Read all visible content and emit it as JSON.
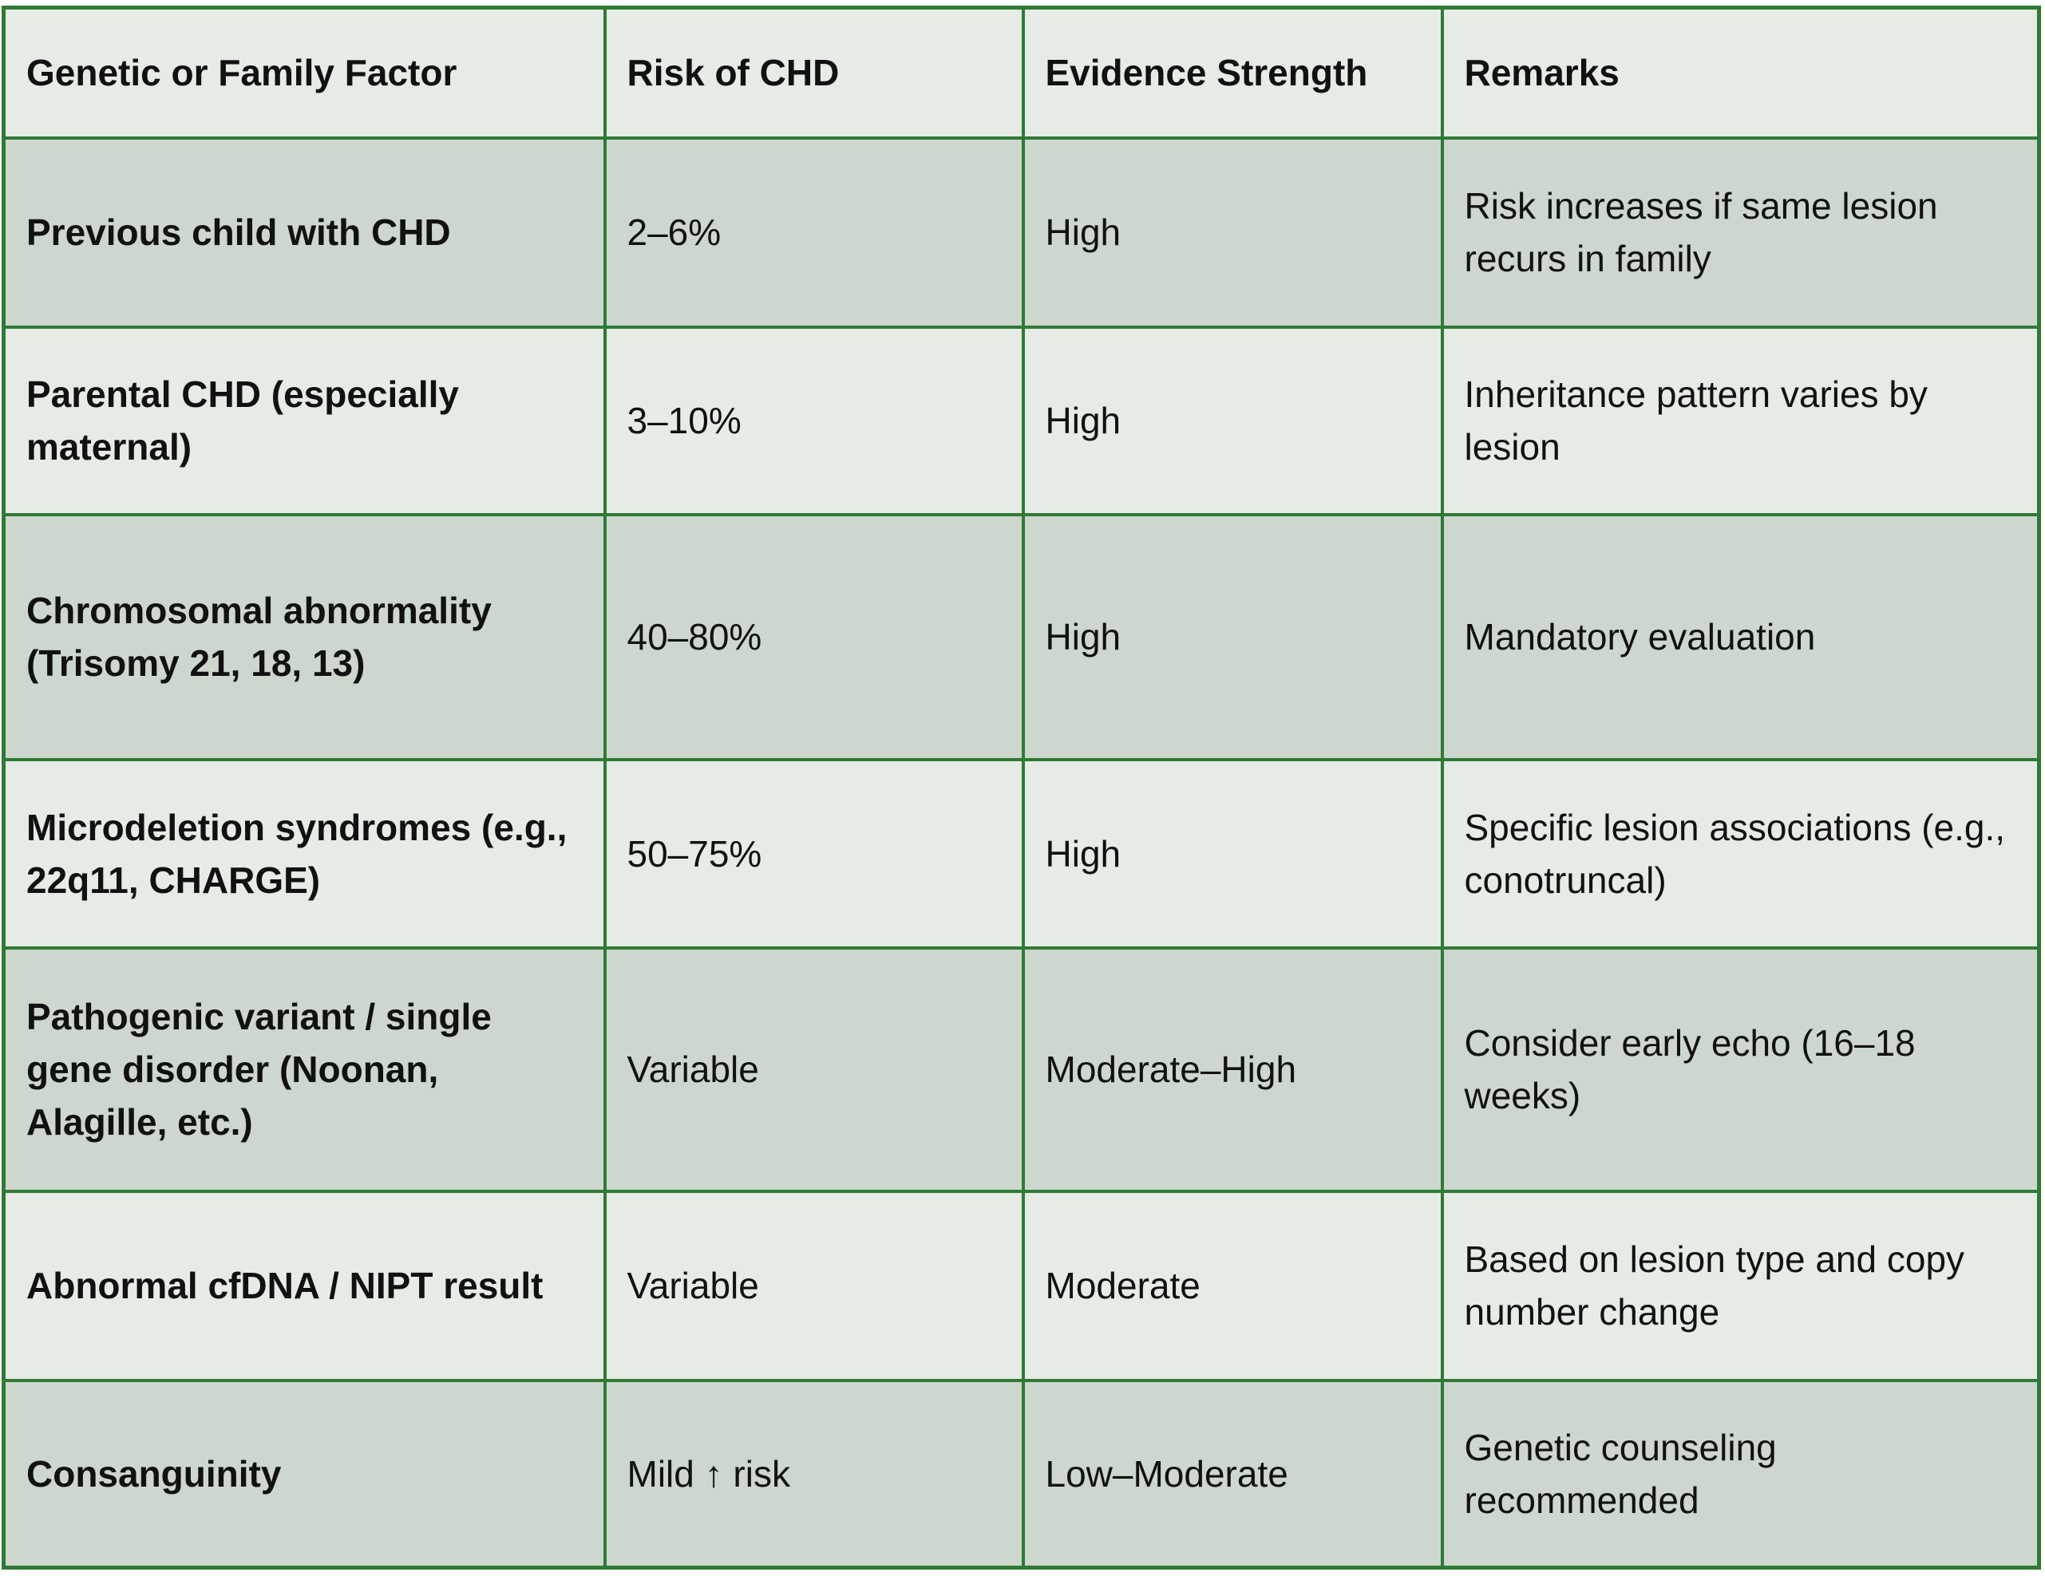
{
  "table": {
    "header": [
      "Genetic or Family Factor",
      "Risk of CHD",
      "Evidence Strength",
      "Remarks"
    ],
    "rows": [
      [
        "Previous child with CHD",
        "2–6%",
        "High",
        "Risk increases if same lesion recurs in family"
      ],
      [
        "Parental CHD (especially maternal)",
        "3–10%",
        "High",
        "Inheritance pattern varies by lesion"
      ],
      [
        "Chromosomal abnormality (Trisomy 21, 18, 13)",
        "40–80%",
        "High",
        "Mandatory evaluation"
      ],
      [
        "Microdeletion syndromes (e.g., 22q11, CHARGE)",
        "50–75%",
        "High",
        "Specific lesion associations (e.g., conotruncal)"
      ],
      [
        "Pathogenic variant / single gene disorder (Noonan, Alagille, etc.)",
        "Variable",
        "Moderate–High",
        "Consider early echo (16–18 weeks)"
      ],
      [
        "Abnormal cfDNA / NIPT result",
        "Variable",
        "Moderate",
        "Based on lesion type and copy number change"
      ],
      [
        "Consanguinity",
        "Mild ↑ risk",
        "Low–Moderate",
        "Genetic counseling recommended"
      ]
    ]
  }
}
